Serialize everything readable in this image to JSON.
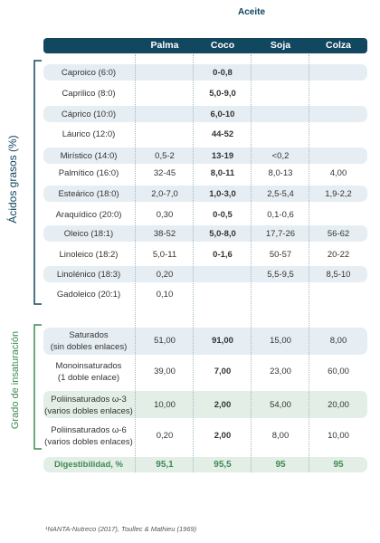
{
  "title": "Aceite",
  "columns": [
    "Palma",
    "Coco",
    "Soja",
    "Colza"
  ],
  "section_fatty_acids": "Ácidos grasos (%)",
  "section_unsaturation": "Grado de insaturación",
  "fatty_acids": [
    {
      "label": "Caproico (6:0)",
      "values": [
        "",
        "0-0,8",
        "",
        ""
      ]
    },
    {
      "label": "Caprilico (8:0)",
      "values": [
        "",
        "5,0-9,0",
        "",
        ""
      ]
    },
    {
      "label": "Cáprico (10:0)",
      "values": [
        "",
        "6,0-10",
        "",
        ""
      ]
    },
    {
      "label": "Láurico (12:0)",
      "values": [
        "",
        "44-52",
        "",
        ""
      ]
    },
    {
      "label": "Mirístico (14:0)",
      "values": [
        "0,5-2",
        "13-19",
        "<0,2",
        ""
      ]
    },
    {
      "label": "Palmítico (16:0)",
      "values": [
        "32-45",
        "8,0-11",
        "8,0-13",
        "4,00"
      ]
    },
    {
      "label": "Esteárico (18:0)",
      "values": [
        "2,0-7,0",
        "1,0-3,0",
        "2,5-5,4",
        "1,9-2,2"
      ]
    },
    {
      "label": "Araquídico (20:0)",
      "values": [
        "0,30",
        "0-0,5",
        "0,1-0,6",
        ""
      ]
    },
    {
      "label": "Oleico (18:1)",
      "values": [
        "38-52",
        "5,0-8,0",
        "17,7-26",
        "56-62"
      ]
    },
    {
      "label": "Linoleico (18:2)",
      "values": [
        "5,0-11",
        "0-1,6",
        "50-57",
        "20-22"
      ]
    },
    {
      "label": "Linolénico (18:3)",
      "values": [
        "0,20",
        "",
        "5,5-9,5",
        "8,5-10"
      ]
    },
    {
      "label": "Gadoleico (20:1)",
      "values": [
        "0,10",
        "",
        "",
        ""
      ]
    }
  ],
  "unsaturation": [
    {
      "label_1": "Saturados",
      "label_2": "(sin dobles enlaces)",
      "values": [
        "51,00",
        "91,00",
        "15,00",
        "8,00"
      ]
    },
    {
      "label_1": "Monoinsaturados",
      "label_2": "(1 doble enlace)",
      "values": [
        "39,00",
        "7,00",
        "23,00",
        "60,00"
      ]
    },
    {
      "label_1": "Poliinsaturados ω-3",
      "label_2": "(varios dobles enlaces)",
      "values": [
        "10,00",
        "2,00",
        "54,00",
        "20,00"
      ]
    },
    {
      "label_1": "Poliinsaturados ω-6",
      "label_2": "(varios dobles enlaces)",
      "values": [
        "0,20",
        "2,00",
        "8,00",
        "10,00"
      ]
    }
  ],
  "digestibility": {
    "label": "Digestibilidad, %",
    "values": [
      "95,1",
      "95,5",
      "95",
      "95"
    ]
  },
  "footnote": "¹NANTA-Nutreco (2017), Toullec & Mathieu (1969)",
  "colors": {
    "header": "#124760",
    "row_light": "#e6eef3",
    "row_green": "#e3eee7",
    "digestibility": "#3f8a52",
    "section_title": "#0d4460"
  }
}
